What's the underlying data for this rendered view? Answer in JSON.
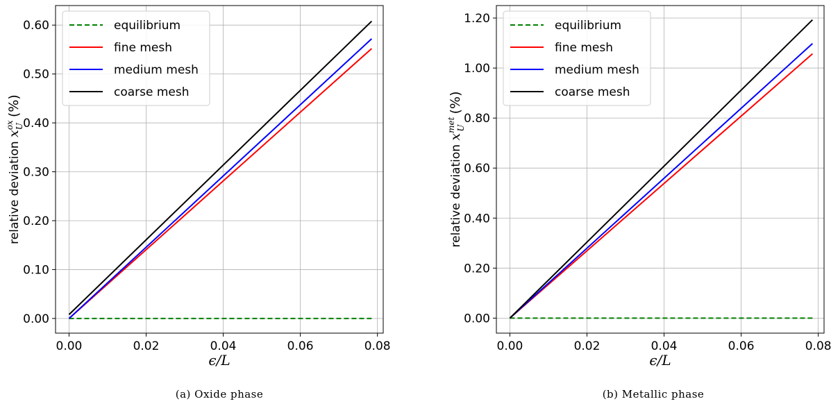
{
  "chart_data": [
    {
      "type": "line",
      "caption": "(a) Oxide phase",
      "xlabel": "ϵ/L",
      "ylabel_prefix": "relative deviation ",
      "ylabel_sym": "x",
      "ylabel_sub": "U",
      "ylabel_sup": "ox",
      "ylabel_suffix": "(%)",
      "xlim": [
        -0.0035,
        0.0815
      ],
      "ylim": [
        -0.03,
        0.64
      ],
      "xticks": [
        0.0,
        0.02,
        0.04,
        0.06,
        0.08
      ],
      "xtick_labels": [
        "0.00",
        "0.02",
        "0.04",
        "0.06",
        "0.08"
      ],
      "yticks": [
        0.0,
        0.1,
        0.2,
        0.3,
        0.4,
        0.5,
        0.6
      ],
      "ytick_labels": [
        "0.00",
        "0.10",
        "0.20",
        "0.30",
        "0.40",
        "0.50",
        "0.60"
      ],
      "grid": true,
      "legend_position": "top-left",
      "series": [
        {
          "name": "equilibrium",
          "color": "#008000",
          "dash": true,
          "x": [
            0.0,
            0.0785
          ],
          "y": [
            0.0,
            0.0
          ]
        },
        {
          "name": "fine mesh",
          "color": "#ff0000",
          "dash": false,
          "x": [
            0.0,
            0.0785
          ],
          "y": [
            0.0,
            0.552
          ]
        },
        {
          "name": "medium mesh",
          "color": "#0000ff",
          "dash": false,
          "x": [
            0.0,
            0.0785
          ],
          "y": [
            0.0,
            0.572
          ]
        },
        {
          "name": "coarse mesh",
          "color": "#000000",
          "dash": false,
          "x": [
            0.0,
            0.0785
          ],
          "y": [
            0.008,
            0.608
          ]
        }
      ]
    },
    {
      "type": "line",
      "caption": "(b) Metallic phase",
      "xlabel": "ϵ/L",
      "ylabel_prefix": "relative deviation ",
      "ylabel_sym": "x",
      "ylabel_sub": "U",
      "ylabel_sup": "met",
      "ylabel_suffix": "(%)",
      "xlim": [
        -0.0035,
        0.0815
      ],
      "ylim": [
        -0.06,
        1.25
      ],
      "xticks": [
        0.0,
        0.02,
        0.04,
        0.06,
        0.08
      ],
      "xtick_labels": [
        "0.00",
        "0.02",
        "0.04",
        "0.06",
        "0.08"
      ],
      "yticks": [
        0.0,
        0.2,
        0.4,
        0.6,
        0.8,
        1.0,
        1.2
      ],
      "ytick_labels": [
        "0.00",
        "0.20",
        "0.40",
        "0.60",
        "0.80",
        "1.00",
        "1.20"
      ],
      "grid": true,
      "legend_position": "top-left",
      "series": [
        {
          "name": "equilibrium",
          "color": "#008000",
          "dash": true,
          "x": [
            0.0,
            0.0785
          ],
          "y": [
            0.0,
            0.0
          ]
        },
        {
          "name": "fine mesh",
          "color": "#ff0000",
          "dash": false,
          "x": [
            0.0,
            0.0785
          ],
          "y": [
            0.0,
            1.057
          ]
        },
        {
          "name": "medium mesh",
          "color": "#0000ff",
          "dash": false,
          "x": [
            0.0,
            0.0785
          ],
          "y": [
            0.0,
            1.098
          ]
        },
        {
          "name": "coarse mesh",
          "color": "#000000",
          "dash": false,
          "x": [
            0.0,
            0.0785
          ],
          "y": [
            0.0,
            1.193
          ]
        }
      ]
    }
  ]
}
